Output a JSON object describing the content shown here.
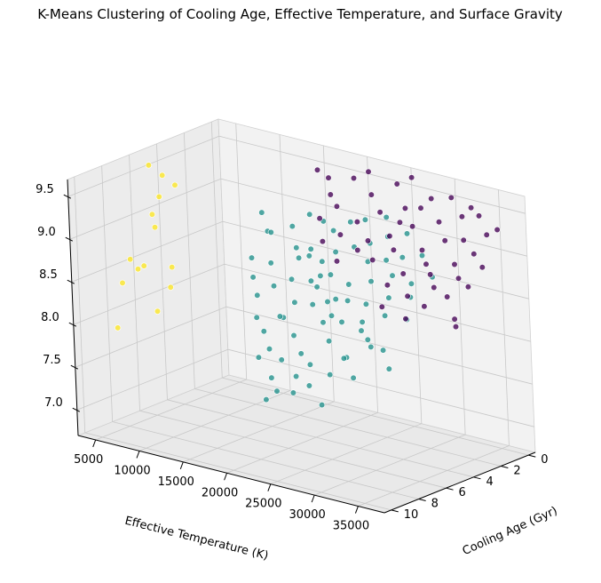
{
  "chart_data": {
    "type": "scatter",
    "title": "K-Means Clustering of Cooling Age, Effective Temperature, and Surface Gravity",
    "xlabel": "Cooling Age (Gyr)",
    "ylabel": "Effective Temperature (K)",
    "zlabel": "",
    "xlim": [
      -0.5,
      10.5
    ],
    "ylim": [
      3000,
      38000
    ],
    "zlim": [
      6.7,
      9.7
    ],
    "x_ticks": [
      "0",
      "2",
      "4",
      "6",
      "8",
      "10"
    ],
    "y_ticks": [
      "5000",
      "10000",
      "15000",
      "20000",
      "25000",
      "30000",
      "35000"
    ],
    "z_ticks": [
      "7.0",
      "7.5",
      "8.0",
      "8.5",
      "9.0",
      "9.5"
    ],
    "grid": true,
    "legend": "none",
    "colors": {
      "cluster_0": "#440154",
      "cluster_1": "#21918c",
      "cluster_2": "#fde725",
      "pane_back": "#f2f2f2",
      "pane_side": "#ececec",
      "pane_floor": "#e9e9e9",
      "grid": "#c8c8c8"
    },
    "series": [
      {
        "cluster": 2,
        "color": "#fde725",
        "points": [
          [
            5.2,
            3900,
            9.55
          ],
          [
            5.0,
            5100,
            9.45
          ],
          [
            4.8,
            6200,
            9.35
          ],
          [
            5.6,
            5600,
            9.25
          ],
          [
            5.4,
            4400,
            9.0
          ],
          [
            6.3,
            6100,
            8.95
          ],
          [
            6.8,
            3900,
            8.55
          ],
          [
            6.2,
            4500,
            8.45
          ],
          [
            7.2,
            5400,
            8.5
          ],
          [
            6.5,
            8200,
            8.55
          ],
          [
            6.9,
            8600,
            8.35
          ],
          [
            7.6,
            8100,
            8.1
          ],
          [
            8.2,
            4400,
            7.85
          ],
          [
            7.3,
            3700,
            8.3
          ]
        ]
      },
      {
        "cluster": 1,
        "color": "#21918c",
        "points": [
          [
            4.0,
            14800,
            9.2
          ],
          [
            4.5,
            16200,
            9.05
          ],
          [
            5.0,
            17400,
            9.1
          ],
          [
            4.2,
            18600,
            9.15
          ],
          [
            3.8,
            20000,
            9.3
          ],
          [
            4.6,
            19600,
            8.95
          ],
          [
            5.2,
            20800,
            8.9
          ],
          [
            4.8,
            21600,
            9.0
          ],
          [
            5.6,
            18200,
            8.8
          ],
          [
            5.9,
            21000,
            8.7
          ],
          [
            6.2,
            19400,
            8.6
          ],
          [
            6.5,
            22200,
            8.5
          ],
          [
            6.0,
            23400,
            8.75
          ],
          [
            5.4,
            23800,
            8.95
          ],
          [
            4.9,
            24600,
            9.05
          ],
          [
            5.7,
            25200,
            8.85
          ],
          [
            6.7,
            24600,
            8.55
          ],
          [
            7.1,
            21800,
            8.35
          ],
          [
            7.4,
            23400,
            8.2
          ],
          [
            7.8,
            24800,
            8.05
          ],
          [
            8.1,
            23000,
            7.95
          ],
          [
            7.0,
            26200,
            8.4
          ],
          [
            6.4,
            26800,
            8.65
          ],
          [
            5.8,
            27400,
            8.8
          ],
          [
            6.9,
            28200,
            8.45
          ],
          [
            7.5,
            27600,
            8.25
          ],
          [
            8.3,
            26600,
            8.0
          ],
          [
            8.6,
            25400,
            7.85
          ],
          [
            4.3,
            25800,
            9.1
          ],
          [
            4.0,
            23000,
            9.2
          ],
          [
            3.7,
            21400,
            9.25
          ],
          [
            3.5,
            24200,
            9.3
          ],
          [
            4.6,
            27800,
            9.0
          ],
          [
            5.3,
            29200,
            8.85
          ],
          [
            6.1,
            29800,
            8.65
          ],
          [
            6.8,
            30400,
            8.5
          ],
          [
            3.9,
            27000,
            9.15
          ],
          [
            4.4,
            29600,
            9.05
          ],
          [
            5.0,
            31200,
            8.95
          ],
          [
            5.7,
            31800,
            8.75
          ],
          [
            6.4,
            32400,
            8.6
          ],
          [
            7.2,
            31600,
            8.35
          ],
          [
            7.9,
            30200,
            8.15
          ],
          [
            8.4,
            29000,
            7.95
          ],
          [
            8.8,
            27200,
            7.8
          ],
          [
            9.1,
            25800,
            7.7
          ],
          [
            3.3,
            25600,
            9.35
          ],
          [
            3.6,
            28600,
            9.25
          ],
          [
            4.1,
            31000,
            9.1
          ],
          [
            4.9,
            33200,
            8.9
          ],
          [
            5.5,
            34000,
            8.8
          ],
          [
            6.2,
            34600,
            8.6
          ],
          [
            2.9,
            27400,
            9.4
          ],
          [
            3.2,
            30200,
            9.3
          ],
          [
            3.8,
            32800,
            9.15
          ],
          [
            4.5,
            35000,
            9.0
          ],
          [
            5.1,
            22600,
            8.6
          ],
          [
            5.5,
            24400,
            8.5
          ],
          [
            6.0,
            25600,
            8.4
          ],
          [
            6.6,
            20600,
            8.3
          ],
          [
            7.3,
            19800,
            8.15
          ],
          [
            7.7,
            21000,
            8.0
          ],
          [
            8.0,
            20200,
            7.9
          ],
          [
            8.5,
            22400,
            7.75
          ],
          [
            8.9,
            23600,
            7.65
          ],
          [
            9.2,
            22800,
            7.55
          ],
          [
            7.6,
            29400,
            8.1
          ],
          [
            8.1,
            31200,
            7.95
          ],
          [
            5.3,
            26400,
            8.55
          ],
          [
            4.7,
            22400,
            8.7
          ],
          [
            4.2,
            20400,
            8.85
          ],
          [
            5.9,
            28800,
            8.3
          ],
          [
            6.5,
            30800,
            8.2
          ],
          [
            7.0,
            33000,
            8.25
          ],
          [
            7.5,
            34400,
            8.1
          ],
          [
            6.3,
            17600,
            8.45
          ],
          [
            5.8,
            16400,
            8.6
          ],
          [
            5.1,
            15200,
            8.75
          ],
          [
            6.9,
            18400,
            8.25
          ],
          [
            8.7,
            28400,
            7.6
          ]
        ]
      },
      {
        "cluster": 0,
        "color": "#440154",
        "points": [
          [
            0.6,
            17200,
            9.45
          ],
          [
            0.4,
            19800,
            9.5
          ],
          [
            0.8,
            22400,
            9.4
          ],
          [
            0.3,
            24600,
            9.55
          ],
          [
            0.9,
            26400,
            9.35
          ],
          [
            0.5,
            28800,
            9.5
          ],
          [
            1.0,
            30400,
            9.3
          ],
          [
            0.7,
            32600,
            9.4
          ],
          [
            1.2,
            19000,
            9.2
          ],
          [
            1.4,
            21600,
            9.1
          ],
          [
            1.1,
            23800,
            9.25
          ],
          [
            1.6,
            25600,
            9.05
          ],
          [
            1.3,
            27800,
            9.2
          ],
          [
            1.8,
            29600,
            9.0
          ],
          [
            1.5,
            31800,
            9.15
          ],
          [
            2.0,
            33600,
            8.95
          ],
          [
            1.9,
            20400,
            8.95
          ],
          [
            2.2,
            22800,
            8.85
          ],
          [
            2.4,
            24800,
            8.8
          ],
          [
            2.1,
            26800,
            8.95
          ],
          [
            2.6,
            28600,
            8.75
          ],
          [
            2.3,
            30800,
            8.9
          ],
          [
            2.8,
            32400,
            8.7
          ],
          [
            2.5,
            34800,
            8.85
          ],
          [
            0.2,
            21200,
            9.6
          ],
          [
            0.1,
            26000,
            9.65
          ],
          [
            0.6,
            34400,
            9.45
          ],
          [
            1.1,
            36000,
            9.3
          ],
          [
            1.7,
            35400,
            9.1
          ],
          [
            2.9,
            27200,
            8.6
          ],
          [
            3.1,
            29800,
            8.55
          ],
          [
            3.3,
            32000,
            8.5
          ],
          [
            3.0,
            34200,
            8.65
          ],
          [
            2.7,
            36200,
            8.8
          ],
          [
            3.4,
            35600,
            8.45
          ],
          [
            1.0,
            18000,
            9.3
          ],
          [
            1.6,
            17600,
            9.05
          ],
          [
            2.2,
            18800,
            8.85
          ],
          [
            0.3,
            30800,
            9.55
          ],
          [
            0.9,
            28200,
            9.4
          ],
          [
            1.4,
            33800,
            9.2
          ],
          [
            2.0,
            36800,
            9.0
          ],
          [
            2.4,
            31400,
            8.8
          ],
          [
            0.7,
            36600,
            9.35
          ],
          [
            3.6,
            27600,
            8.4
          ],
          [
            3.8,
            30600,
            8.35
          ],
          [
            0.5,
            15800,
            9.5
          ],
          [
            1.2,
            26200,
            9.2
          ],
          [
            1.8,
            23400,
            8.95
          ],
          [
            2.6,
            21000,
            8.7
          ],
          [
            4.2,
            37000,
            8.45
          ],
          [
            0.4,
            33200,
            9.5
          ]
        ]
      }
    ]
  }
}
